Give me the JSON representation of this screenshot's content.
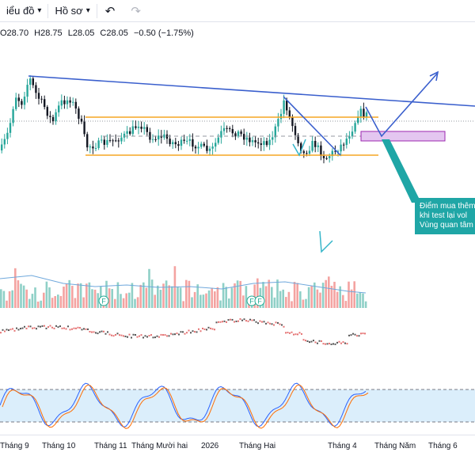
{
  "toolbar": {
    "chart_type_label": "iểu đồ",
    "profile_label": "Hồ sơ",
    "undo_icon": "undo-icon",
    "redo_icon": "redo-icon"
  },
  "legend": {
    "open": "O28.70",
    "high": "H28.75",
    "low": "L28.05",
    "close": "C28.05",
    "change": "−0.50 (−1.75%)"
  },
  "callout": {
    "line1": "Điểm mua thêm",
    "line2": "khi test lại vol",
    "line3": "Vùng quan tâm"
  },
  "event_markers": [
    "F",
    "F",
    "F"
  ],
  "xaxis": {
    "labels": [
      "Tháng 9",
      "Tháng 10",
      "Tháng 11",
      "Tháng Mười hai",
      "2026",
      "Tháng Hai",
      "Tháng 4",
      "Tháng Năm",
      "Tháng 6"
    ]
  },
  "colors": {
    "up": "#26a69a",
    "down": "#ef5350",
    "trendline": "#3a5fcd",
    "support": "#f5a623",
    "zone": "#e4c6f0",
    "callout": "#1fa6a6",
    "stoch_band": "#dbeefb"
  }
}
